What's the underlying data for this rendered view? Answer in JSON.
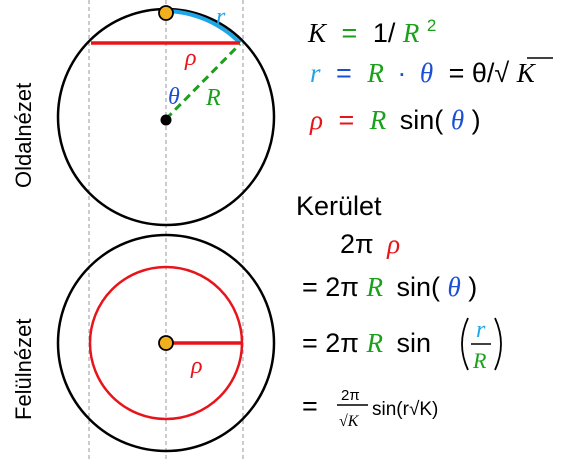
{
  "colors": {
    "black": "#000000",
    "blue": "#1fa6e8",
    "green": "#1aa01a",
    "red": "#e8141b",
    "theta_blue": "#1a4fd6",
    "point_fill": "#f2b01e",
    "guide": "#9a9a9a"
  },
  "labels": {
    "side_view": "Oldalnézet",
    "top_view": "Felülnézet",
    "r": "r",
    "rho": "ρ",
    "theta": "θ",
    "R": "R",
    "rho_top": "ρ"
  },
  "formulas": {
    "curvature": {
      "K": "K",
      "eq": "=",
      "one": "1/",
      "R": "R",
      "exp": "2"
    },
    "arc": {
      "r": "r",
      "eq1": "=",
      "R": "R",
      "dot": "·",
      "theta": "θ",
      "eq2": "= θ/√",
      "K": "K"
    },
    "rho": {
      "rho": "ρ",
      "eq": "=",
      "R": "R",
      "sin": "sin(",
      "theta": "θ",
      "close": ")"
    },
    "circumference": {
      "title": "Kerület",
      "line1_pre": "2π",
      "line1_rho": "ρ",
      "line2_pre": "= 2π",
      "line2_R": "R",
      "line2_sin": "sin(",
      "line2_theta": "θ",
      "line2_close": ")",
      "line3_pre": "= 2π",
      "line3_R": "R",
      "line3_sin": "sin",
      "line3_num": "r",
      "line3_den": "R",
      "line4_eq": "=",
      "line4_num": "2π",
      "line4_den": "√K",
      "line4_rest": "sin(r√K)"
    }
  }
}
